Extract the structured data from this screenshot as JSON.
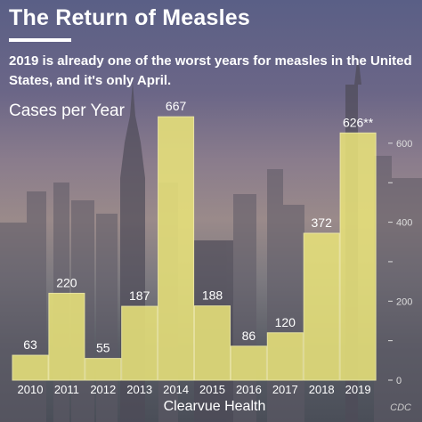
{
  "header": {
    "title": "The Return of Measles",
    "subtitle": "2019 is already one of the worst years for measles in the United States, and it's only April."
  },
  "footer": {
    "brand": "Clearvue Health",
    "source": "CDC"
  },
  "colors": {
    "bar_fill": "#e8e27a",
    "bar_stroke": "#f8f3a8",
    "text": "#ffffff",
    "axis": "#dddddd"
  },
  "chart_data": {
    "type": "bar",
    "title": "Cases per Year",
    "categories": [
      "2010",
      "2011",
      "2012",
      "2013",
      "2014",
      "2015",
      "2016",
      "2017",
      "2018",
      "2019"
    ],
    "values": [
      63,
      220,
      55,
      187,
      667,
      188,
      86,
      120,
      372,
      626
    ],
    "data_labels": [
      "63",
      "220",
      "55",
      "187",
      "667",
      "188",
      "86",
      "120",
      "372",
      "626**"
    ],
    "ylim": [
      0,
      620
    ],
    "yticks": [
      "0",
      "200",
      "400",
      "600"
    ],
    "grid": false,
    "legend": "none"
  }
}
